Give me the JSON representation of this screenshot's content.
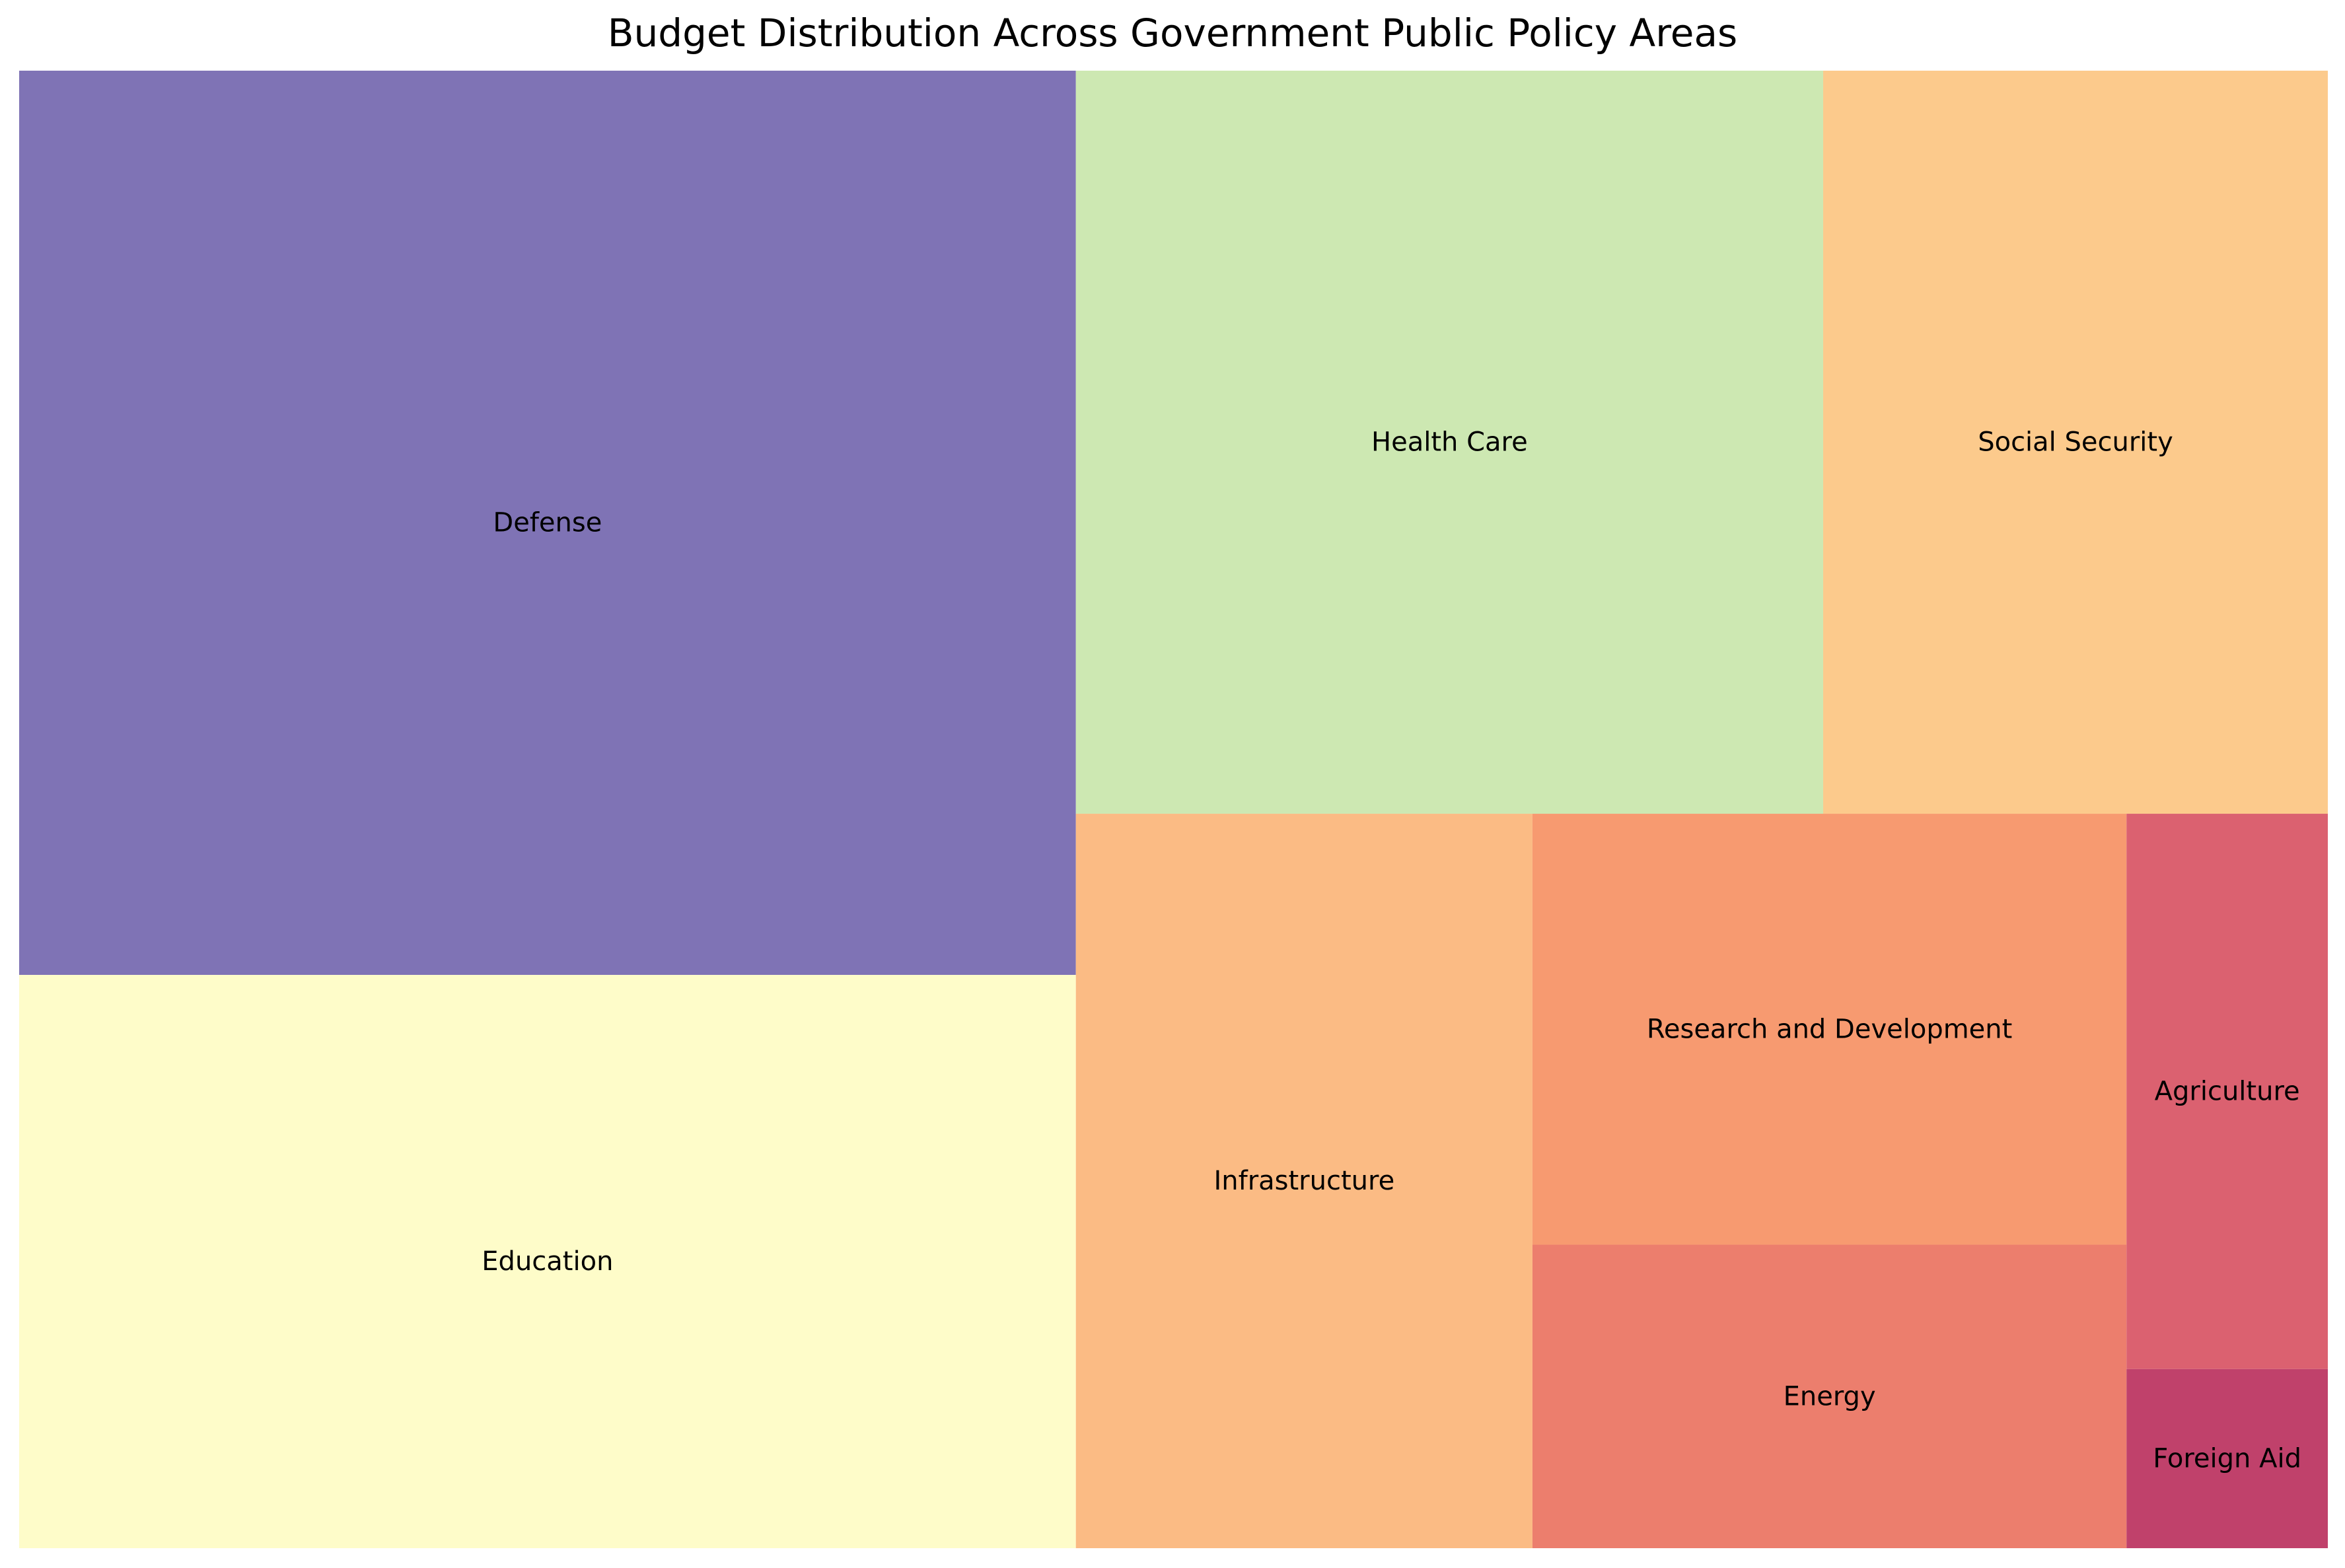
{
  "chart_data": {
    "type": "treemap",
    "title": "Budget Distribution Across Government Public Policy Areas",
    "value_unit": "relative share (estimated from tile areas, %)",
    "items": [
      {
        "name": "Defense",
        "value": 26.5,
        "color": "#7f73b5"
      },
      {
        "name": "Health Care",
        "value": 15.4,
        "color": "#cde8b2"
      },
      {
        "name": "Education",
        "value": 16.8,
        "color": "#fefcc9"
      },
      {
        "name": "Social Security",
        "value": 10.4,
        "color": "#fcca8c"
      },
      {
        "name": "Infrastructure",
        "value": 9.3,
        "color": "#fbbb84"
      },
      {
        "name": "Research and Development",
        "value": 7.1,
        "color": "#f79a70"
      },
      {
        "name": "Energy",
        "value": 5.0,
        "color": "#ec7e6d"
      },
      {
        "name": "Agriculture",
        "value": 3.1,
        "color": "#db6170"
      },
      {
        "name": "Foreign Aid",
        "value": 1.0,
        "color": "#c0416b"
      }
    ]
  }
}
